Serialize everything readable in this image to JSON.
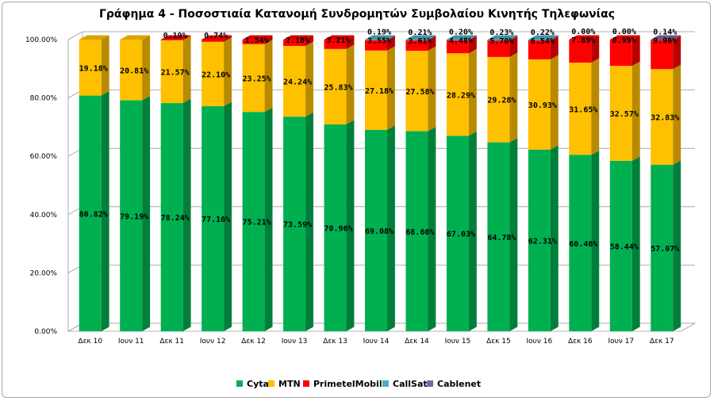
{
  "chart_data": {
    "type": "bar",
    "stacked": true,
    "percent_stacked": true,
    "three_d": true,
    "title": "Γράφημα 4 - Ποσοστιαία Κατανομή Συνδρομητών Συμβολαίου Κινητής Τηλεφωνίας",
    "categories": [
      "Δεκ 10",
      "Ιουν 11",
      "Δεκ 11",
      "Ιουν 12",
      "Δεκ 12",
      "Ιουν 13",
      "Δεκ 13",
      "Ιουν 14",
      "Δεκ 14",
      "Ιουν 15",
      "Δεκ 15",
      "Ιουν 16",
      "Δεκ 16",
      "Ιουν 17",
      "Δεκ 17"
    ],
    "series": [
      {
        "name": "Cyta",
        "color": "#00b050",
        "values": [
          80.82,
          79.19,
          78.24,
          77.16,
          75.21,
          73.59,
          70.96,
          69.08,
          68.6,
          67.03,
          64.78,
          62.31,
          60.46,
          58.44,
          57.07
        ],
        "labels": [
          "80.82%",
          "79.19%",
          "78.24%",
          "77.16%",
          "75.21%",
          "73.59%",
          "70.96%",
          "69.08%",
          "68.60%",
          "67.03%",
          "64.78%",
          "62.31%",
          "60.46%",
          "58.44%",
          "57.07%"
        ]
      },
      {
        "name": "MTN",
        "color": "#ffc000",
        "values": [
          19.18,
          20.81,
          21.57,
          22.1,
          23.25,
          24.24,
          25.83,
          27.18,
          27.58,
          28.29,
          29.28,
          30.93,
          31.65,
          32.57,
          32.83
        ],
        "labels": [
          "19.18%",
          "20.81%",
          "21.57%",
          "22.10%",
          "23.25%",
          "24.24%",
          "25.83%",
          "27.18%",
          "27.58%",
          "28.29%",
          "29.28%",
          "30.93%",
          "31.65%",
          "32.57%",
          "32.83%"
        ]
      },
      {
        "name": "PrimetelMobile",
        "color": "#ff0000",
        "values": [
          0,
          0,
          0.19,
          0.74,
          1.54,
          2.18,
          3.21,
          3.55,
          3.61,
          4.48,
          5.7,
          6.54,
          7.89,
          8.99,
          9.96
        ],
        "labels": [
          "",
          "",
          "0.19%",
          "0.74%",
          "1.54%",
          "2.18%",
          "3.21%",
          "3.55%",
          "3.61%",
          "4.48%",
          "5.70%",
          "6.54%",
          "7.89%",
          "8.99%",
          "9.96%"
        ]
      },
      {
        "name": "CallSat",
        "color": "#4bacc6",
        "values": [
          0,
          0,
          0,
          0,
          0,
          0,
          0,
          0.19,
          0.21,
          0.2,
          0.23,
          0.22,
          0.0,
          0.0,
          0
        ],
        "labels": [
          "",
          "",
          "",
          "",
          "",
          "",
          "",
          "0.19%",
          "0.21%",
          "0.20%",
          "0.23%",
          "0.22%",
          "0.00%",
          "0.00%",
          ""
        ]
      },
      {
        "name": "Cablenet",
        "color": "#8064a2",
        "values": [
          0,
          0,
          0,
          0,
          0,
          0,
          0,
          0,
          0,
          0,
          0,
          0,
          0,
          0,
          0.14
        ],
        "labels": [
          "",
          "",
          "",
          "",
          "",
          "",
          "",
          "",
          "",
          "",
          "",
          "",
          "",
          "",
          "0.14%"
        ]
      }
    ],
    "ylim": [
      0,
      100
    ],
    "yticks": [
      "0.00%",
      "20.00%",
      "40.00%",
      "60.00%",
      "80.00%",
      "100.00%"
    ],
    "xlabel": "",
    "ylabel": "",
    "grid": true,
    "legend_position": "bottom"
  }
}
